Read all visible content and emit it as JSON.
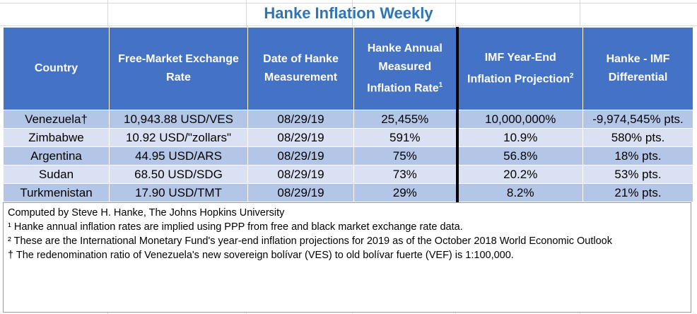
{
  "title": "Hanke Inflation Weekly",
  "headers": [
    {
      "text": "Country"
    },
    {
      "text": "Free-Market Exchange Rate"
    },
    {
      "text": "Date of Hanke Measurement"
    },
    {
      "text": "Hanke Annual Measured Inflation Rate",
      "sup": "1"
    },
    {
      "text": "IMF Year-End Inflation Projection",
      "sup": "2"
    },
    {
      "text": "Hanke - IMF Differential"
    }
  ],
  "rows": [
    {
      "country": "Venezuela†",
      "rate": "10,943.88 USD/VES",
      "date": "08/29/19",
      "hanke": "25,455%",
      "imf": "10,000,000%",
      "diff": "-9,974,545% pts."
    },
    {
      "country": "Zimbabwe",
      "rate": "10.92 USD/\"zollars\"",
      "date": "08/29/19",
      "hanke": "591%",
      "imf": "10.9%",
      "diff": "580% pts."
    },
    {
      "country": "Argentina",
      "rate": "44.95 USD/ARS",
      "date": "08/29/19",
      "hanke": "75%",
      "imf": "56.8%",
      "diff": "18% pts."
    },
    {
      "country": "Sudan",
      "rate": "68.50 USD/SDG",
      "date": "08/29/19",
      "hanke": "73%",
      "imf": "20.2%",
      "diff": "53% pts."
    },
    {
      "country": "Turkmenistan",
      "rate": "17.90 USD/TMT",
      "date": "08/29/19",
      "hanke": "29%",
      "imf": "8.2%",
      "diff": "21% pts."
    }
  ],
  "notes": [
    "Computed by Steve H. Hanke, The Johns Hopkins University",
    "¹ Hanke annual inflation rates are implied using PPP from free and black market exchange rate data.",
    "² These are the International Monetary Fund's year-end inflation projections for 2019 as of the October 2018 World Economic Outlook",
    "† The redenomination ratio of Venezuela's new sovereign bolívar (VES) to old bolívar fuerte (VEF) is 1:100,000."
  ]
}
